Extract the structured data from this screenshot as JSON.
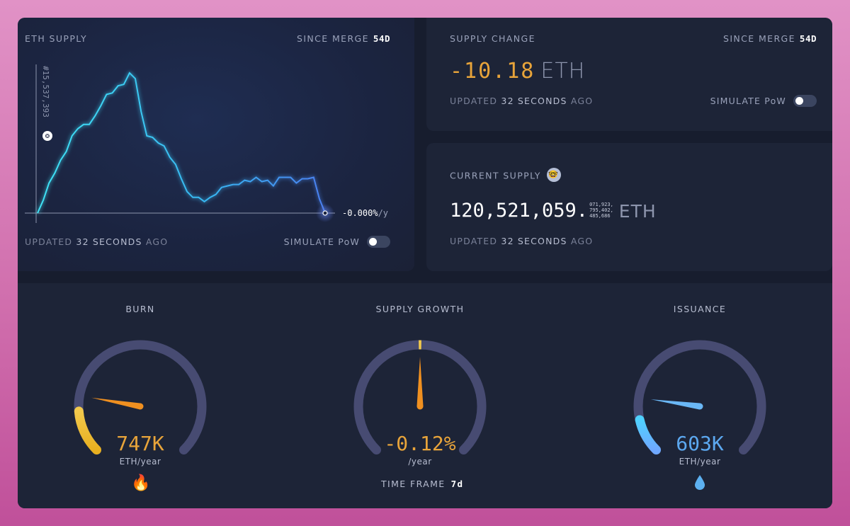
{
  "supply_chart": {
    "title": "ETH SUPPLY",
    "since_label": "SINCE MERGE",
    "since_value": "54d",
    "peak_label": "#15,537,393",
    "rate_label": "-0.000%",
    "rate_unit": "/y",
    "updated_prefix": "UPDATED",
    "updated_value": "32 SECONDS",
    "updated_suffix": "AGO",
    "simulate_label": "SIMULATE PoW",
    "simulate_on": false
  },
  "chart_data": {
    "type": "line",
    "title": "ETH SUPPLY",
    "x": [
      0,
      2,
      4,
      6,
      8,
      10,
      12,
      14,
      16,
      18,
      20,
      22,
      24,
      26,
      28,
      30,
      32,
      34,
      36,
      38,
      40,
      42,
      44,
      46,
      48,
      50,
      52,
      54,
      56,
      58,
      60,
      62,
      64,
      66,
      68,
      70,
      72,
      74,
      76,
      78,
      80,
      82,
      84,
      86,
      88,
      90,
      92,
      94,
      96,
      98,
      100
    ],
    "values": [
      0.0,
      0.1,
      0.2,
      0.29,
      0.36,
      0.44,
      0.53,
      0.6,
      0.61,
      0.63,
      0.67,
      0.76,
      0.82,
      0.85,
      0.88,
      0.91,
      0.97,
      0.95,
      0.7,
      0.55,
      0.52,
      0.5,
      0.46,
      0.4,
      0.33,
      0.25,
      0.14,
      0.12,
      0.1,
      0.09,
      0.1,
      0.14,
      0.17,
      0.2,
      0.19,
      0.21,
      0.22,
      0.23,
      0.24,
      0.23,
      0.22,
      0.2,
      0.24,
      0.26,
      0.24,
      0.22,
      0.23,
      0.25,
      0.24,
      0.1,
      0.0
    ],
    "xlabel": "",
    "ylabel": "",
    "annotation": "-0.000%/y"
  },
  "supply_change": {
    "title": "SUPPLY CHANGE",
    "since_label": "SINCE MERGE",
    "since_value": "54d",
    "value": "-10.18",
    "unit": "ETH",
    "updated_prefix": "UPDATED",
    "updated_value": "32 SECONDS",
    "updated_suffix": "AGO",
    "simulate_label": "SIMULATE PoW"
  },
  "current_supply": {
    "title": "CURRENT SUPPLY",
    "emoji_icon": "nerd-face-icon",
    "value": "120,521,059.",
    "dec1": "071,923,",
    "dec2": "795,402,",
    "dec3": "485,686",
    "unit": "ETH",
    "updated_prefix": "UPDATED",
    "updated_value": "32 SECONDS",
    "updated_suffix": "AGO"
  },
  "gauges": {
    "burn": {
      "title": "BURN",
      "value": "747K",
      "unit": "ETH/year",
      "icon": "fire-icon",
      "color": "#e8a43a",
      "fraction": 0.15
    },
    "growth": {
      "title": "SUPPLY GROWTH",
      "value": "-0.12%",
      "unit": "/year",
      "color": "#e8a43a",
      "fraction": 0.5
    },
    "issuance": {
      "title": "ISSUANCE",
      "value": "603K",
      "unit": "ETH/year",
      "icon": "droplet-icon",
      "color": "#5ca8f0",
      "fraction": 0.12
    },
    "timeframe_label": "TIME FRAME",
    "timeframe_value": "7d"
  }
}
